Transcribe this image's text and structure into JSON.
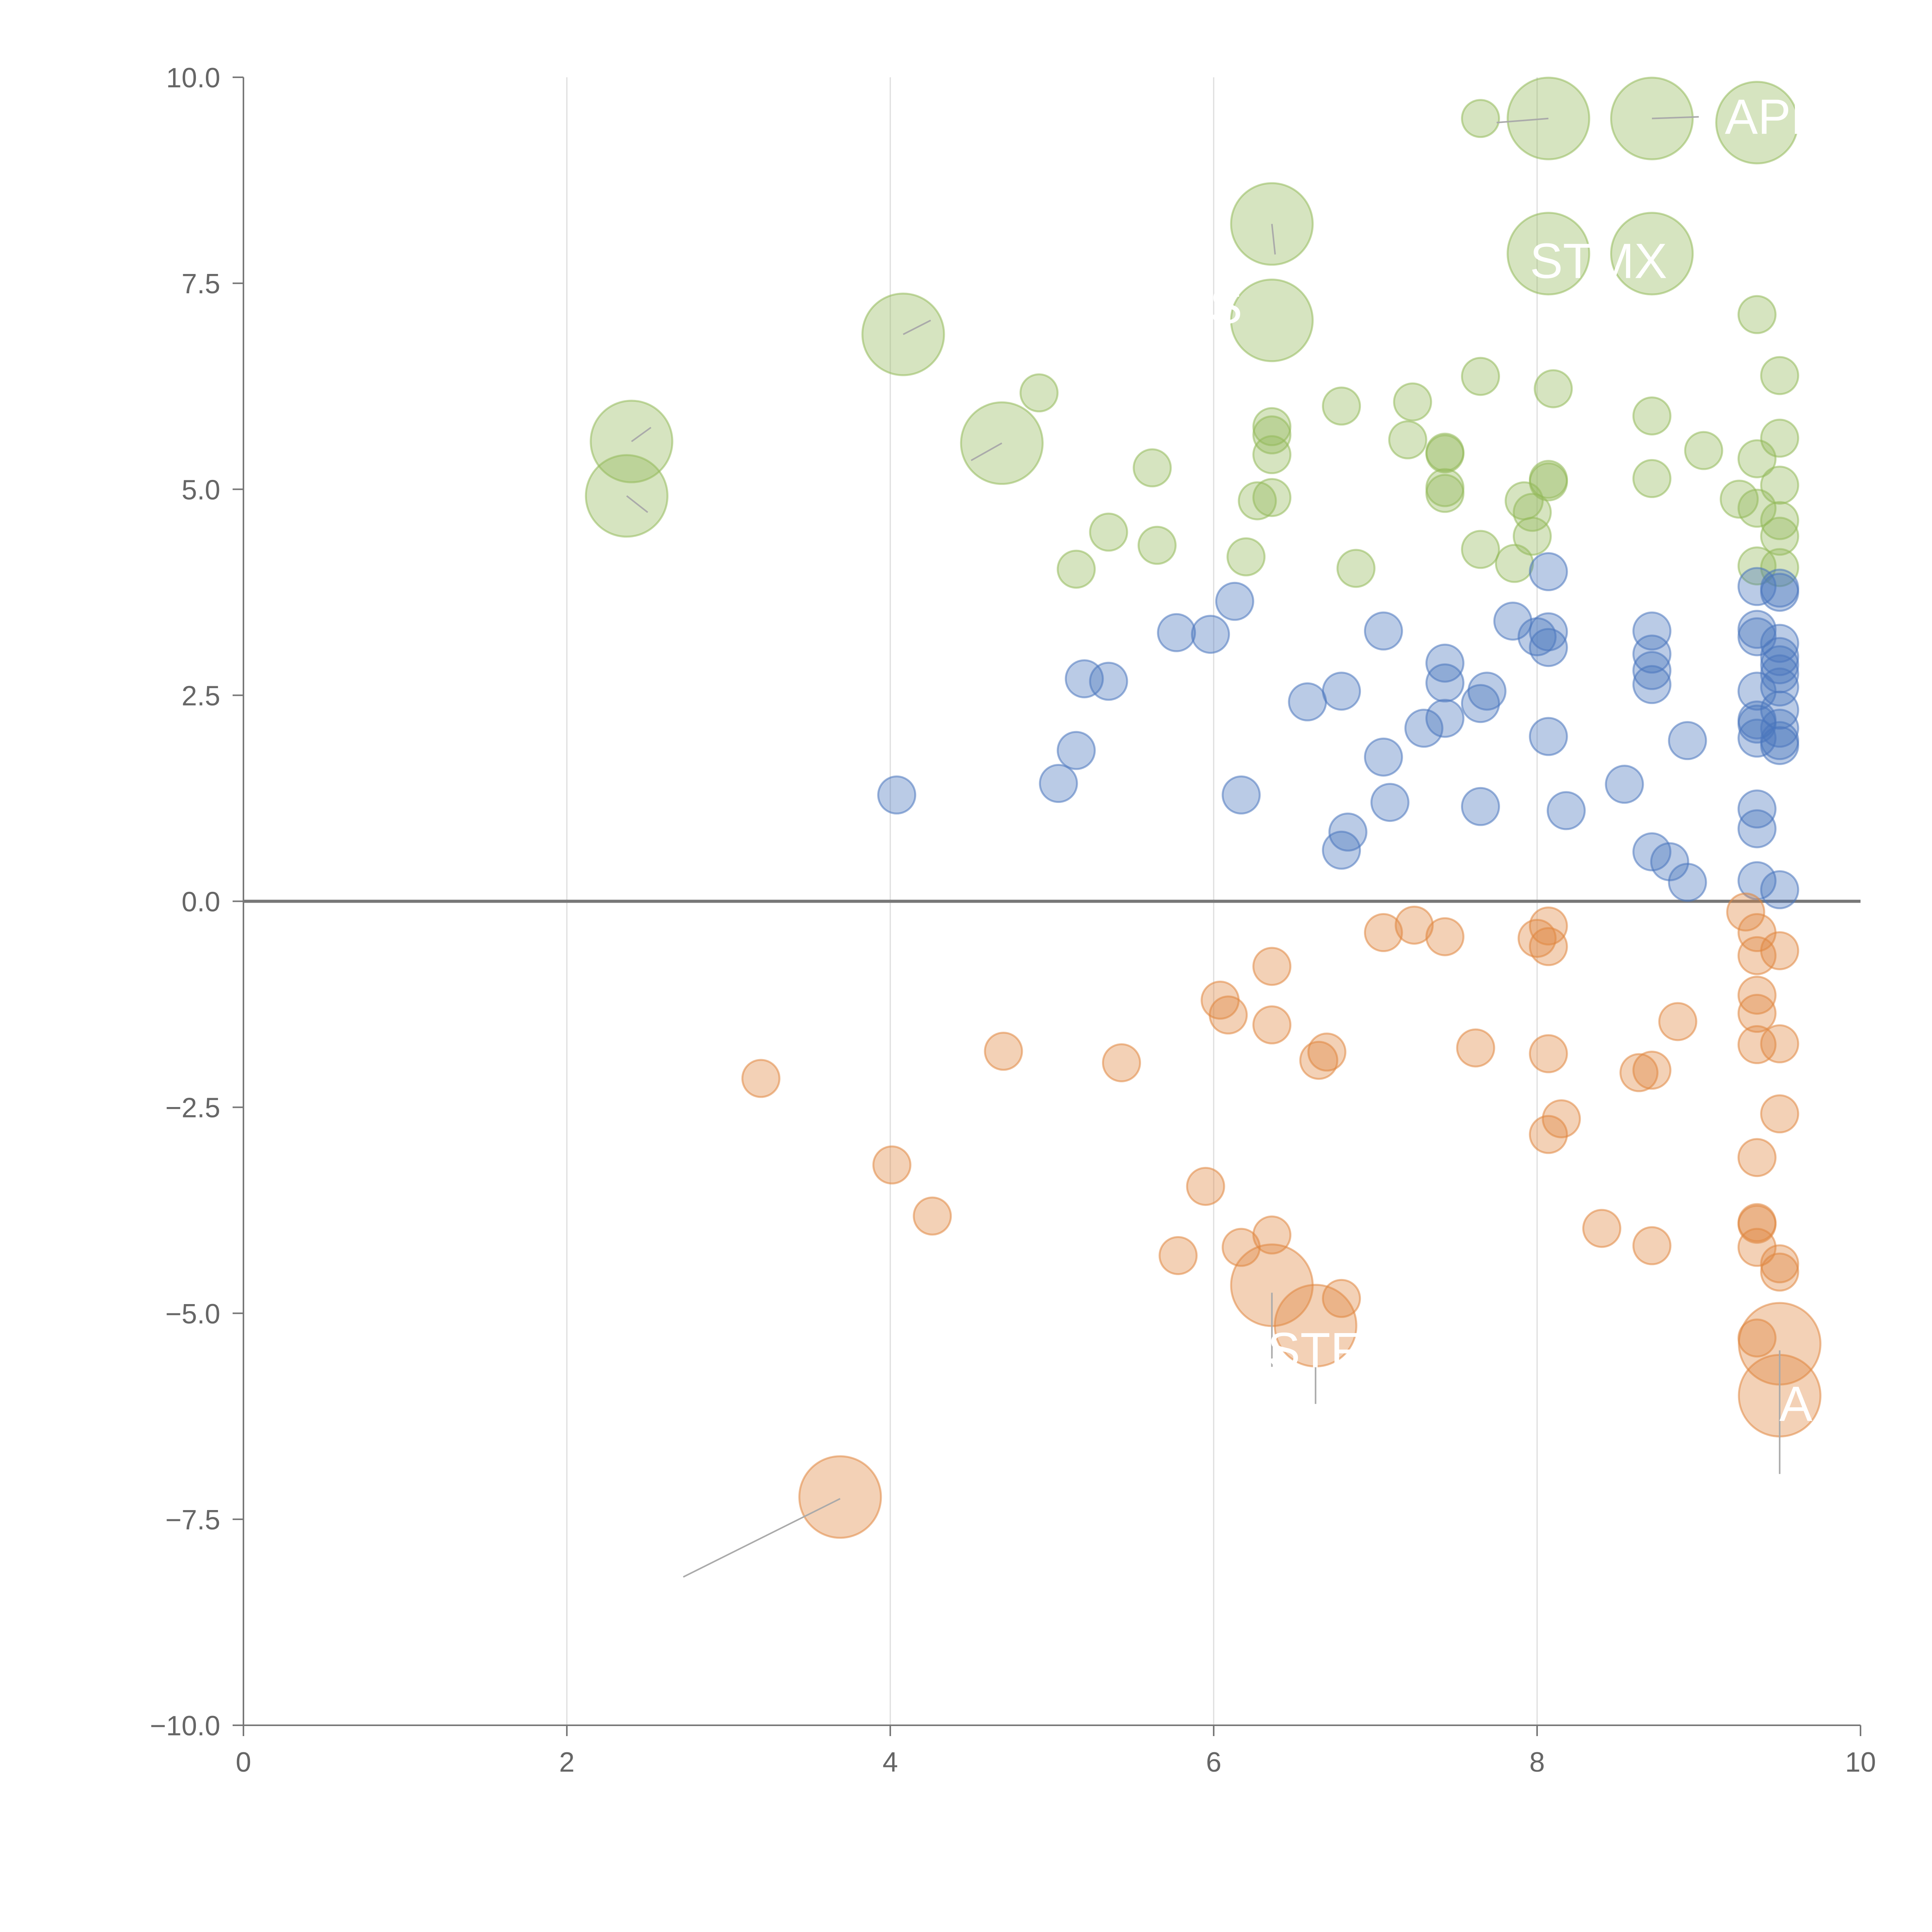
{
  "colors": {
    "positive_high": "#93b95a",
    "positive_mid": "#4a76bd",
    "negative": "#e0873f",
    "axis": "#777777",
    "grid": "#dddddd",
    "label": "#ffffff",
    "leader": "#aaaaaa"
  },
  "chart_data": {
    "type": "scatter",
    "title": "",
    "xlabel": "",
    "ylabel": "",
    "xlim": [
      0,
      10
    ],
    "ylim": [
      -10,
      10
    ],
    "x_ticks": [
      "0",
      "2",
      "4",
      "6",
      "8",
      "10"
    ],
    "y_ticks": [
      "10.0",
      "7.5",
      "5.0",
      "2.5",
      "0.0",
      "−2.5",
      "−5.0",
      "−7.5",
      "−10.0"
    ],
    "grid": "vertical",
    "series": [
      {
        "name": "green",
        "points": [
          {
            "x": 7.65,
            "y": 9.5,
            "s": 1
          },
          {
            "x": 8.07,
            "y": 9.5,
            "s": 2.2
          },
          {
            "x": 8.71,
            "y": 9.5,
            "s": 2.2
          },
          {
            "x": 9.36,
            "y": 9.45,
            "s": 2.2
          },
          {
            "x": 6.36,
            "y": 8.22,
            "s": 2.2
          },
          {
            "x": 8.07,
            "y": 7.86,
            "s": 2.2
          },
          {
            "x": 8.71,
            "y": 7.86,
            "s": 2.2
          },
          {
            "x": 9.36,
            "y": 7.12,
            "s": 1
          },
          {
            "x": 4.08,
            "y": 6.88,
            "s": 2.2
          },
          {
            "x": 6.36,
            "y": 7.05,
            "s": 2.2
          },
          {
            "x": 7.65,
            "y": 6.37,
            "s": 1
          },
          {
            "x": 8.1,
            "y": 6.22,
            "s": 1
          },
          {
            "x": 9.5,
            "y": 6.38,
            "s": 1
          },
          {
            "x": 4.92,
            "y": 6.17,
            "s": 1
          },
          {
            "x": 6.79,
            "y": 6.01,
            "s": 1
          },
          {
            "x": 7.23,
            "y": 6.06,
            "s": 1
          },
          {
            "x": 2.4,
            "y": 5.58,
            "s": 2.2
          },
          {
            "x": 4.69,
            "y": 5.56,
            "s": 2.2
          },
          {
            "x": 8.71,
            "y": 5.89,
            "s": 1
          },
          {
            "x": 9.5,
            "y": 5.62,
            "s": 1
          },
          {
            "x": 6.36,
            "y": 5.76,
            "s": 1
          },
          {
            "x": 6.36,
            "y": 5.66,
            "s": 1
          },
          {
            "x": 7.2,
            "y": 5.6,
            "s": 1
          },
          {
            "x": 7.43,
            "y": 5.45,
            "s": 1
          },
          {
            "x": 7.43,
            "y": 5.43,
            "s": 1
          },
          {
            "x": 9.03,
            "y": 5.47,
            "s": 1
          },
          {
            "x": 9.36,
            "y": 5.37,
            "s": 1
          },
          {
            "x": 6.36,
            "y": 5.42,
            "s": 1
          },
          {
            "x": 5.62,
            "y": 5.26,
            "s": 1
          },
          {
            "x": 8.07,
            "y": 5.12,
            "s": 1
          },
          {
            "x": 8.07,
            "y": 5.09,
            "s": 1
          },
          {
            "x": 8.71,
            "y": 5.13,
            "s": 1
          },
          {
            "x": 9.5,
            "y": 5.05,
            "s": 1
          },
          {
            "x": 7.43,
            "y": 5.02,
            "s": 1
          },
          {
            "x": 7.43,
            "y": 4.95,
            "s": 1
          },
          {
            "x": 2.37,
            "y": 4.92,
            "s": 2.2
          },
          {
            "x": 6.27,
            "y": 4.86,
            "s": 1
          },
          {
            "x": 6.36,
            "y": 4.9,
            "s": 1
          },
          {
            "x": 7.92,
            "y": 4.86,
            "s": 1
          },
          {
            "x": 9.25,
            "y": 4.88,
            "s": 1
          },
          {
            "x": 9.36,
            "y": 4.77,
            "s": 1
          },
          {
            "x": 7.97,
            "y": 4.72,
            "s": 1
          },
          {
            "x": 9.5,
            "y": 4.62,
            "s": 1
          },
          {
            "x": 5.35,
            "y": 4.48,
            "s": 1
          },
          {
            "x": 5.65,
            "y": 4.32,
            "s": 1
          },
          {
            "x": 7.97,
            "y": 4.43,
            "s": 1
          },
          {
            "x": 9.5,
            "y": 4.43,
            "s": 1
          },
          {
            "x": 7.65,
            "y": 4.27,
            "s": 1
          },
          {
            "x": 6.2,
            "y": 4.18,
            "s": 1
          },
          {
            "x": 7.86,
            "y": 4.1,
            "s": 1
          },
          {
            "x": 5.15,
            "y": 4.03,
            "s": 1
          },
          {
            "x": 6.88,
            "y": 4.04,
            "s": 1
          },
          {
            "x": 9.36,
            "y": 4.07,
            "s": 1
          },
          {
            "x": 9.5,
            "y": 4.05,
            "s": 1
          }
        ]
      },
      {
        "name": "blue",
        "points": [
          {
            "x": 8.07,
            "y": 4.0,
            "s": 1
          },
          {
            "x": 9.36,
            "y": 3.82,
            "s": 1
          },
          {
            "x": 9.5,
            "y": 3.8,
            "s": 1
          },
          {
            "x": 9.5,
            "y": 3.75,
            "s": 1
          },
          {
            "x": 6.13,
            "y": 3.64,
            "s": 1
          },
          {
            "x": 7.85,
            "y": 3.4,
            "s": 1
          },
          {
            "x": 5.77,
            "y": 3.26,
            "s": 1
          },
          {
            "x": 5.98,
            "y": 3.24,
            "s": 1
          },
          {
            "x": 7.05,
            "y": 3.28,
            "s": 1
          },
          {
            "x": 8.07,
            "y": 3.27,
            "s": 1
          },
          {
            "x": 8.0,
            "y": 3.21,
            "s": 1
          },
          {
            "x": 8.71,
            "y": 3.28,
            "s": 1
          },
          {
            "x": 9.36,
            "y": 3.3,
            "s": 1
          },
          {
            "x": 9.36,
            "y": 3.21,
            "s": 1
          },
          {
            "x": 9.5,
            "y": 3.13,
            "s": 1
          },
          {
            "x": 8.07,
            "y": 3.08,
            "s": 1
          },
          {
            "x": 8.71,
            "y": 3.0,
            "s": 1
          },
          {
            "x": 9.5,
            "y": 2.97,
            "s": 1
          },
          {
            "x": 7.43,
            "y": 2.89,
            "s": 1
          },
          {
            "x": 9.5,
            "y": 2.87,
            "s": 1
          },
          {
            "x": 8.71,
            "y": 2.8,
            "s": 1
          },
          {
            "x": 9.5,
            "y": 2.76,
            "s": 1
          },
          {
            "x": 5.2,
            "y": 2.7,
            "s": 1
          },
          {
            "x": 5.35,
            "y": 2.67,
            "s": 1
          },
          {
            "x": 7.43,
            "y": 2.65,
            "s": 1
          },
          {
            "x": 8.71,
            "y": 2.63,
            "s": 1
          },
          {
            "x": 9.5,
            "y": 2.6,
            "s": 1
          },
          {
            "x": 9.36,
            "y": 2.55,
            "s": 1
          },
          {
            "x": 6.79,
            "y": 2.55,
            "s": 1
          },
          {
            "x": 7.69,
            "y": 2.55,
            "s": 1
          },
          {
            "x": 6.58,
            "y": 2.42,
            "s": 1
          },
          {
            "x": 7.65,
            "y": 2.4,
            "s": 1
          },
          {
            "x": 9.5,
            "y": 2.32,
            "s": 1
          },
          {
            "x": 7.43,
            "y": 2.22,
            "s": 1
          },
          {
            "x": 9.36,
            "y": 2.2,
            "s": 1
          },
          {
            "x": 7.3,
            "y": 2.1,
            "s": 1
          },
          {
            "x": 9.36,
            "y": 2.15,
            "s": 1
          },
          {
            "x": 9.5,
            "y": 2.1,
            "s": 1
          },
          {
            "x": 8.07,
            "y": 2.0,
            "s": 1
          },
          {
            "x": 9.36,
            "y": 1.98,
            "s": 1
          },
          {
            "x": 8.93,
            "y": 1.95,
            "s": 1
          },
          {
            "x": 9.5,
            "y": 1.95,
            "s": 1
          },
          {
            "x": 9.5,
            "y": 1.89,
            "s": 1
          },
          {
            "x": 5.15,
            "y": 1.83,
            "s": 1
          },
          {
            "x": 7.05,
            "y": 1.75,
            "s": 1
          },
          {
            "x": 5.04,
            "y": 1.43,
            "s": 1
          },
          {
            "x": 8.54,
            "y": 1.42,
            "s": 1
          },
          {
            "x": 4.04,
            "y": 1.29,
            "s": 1
          },
          {
            "x": 6.17,
            "y": 1.29,
            "s": 1
          },
          {
            "x": 7.09,
            "y": 1.2,
            "s": 1
          },
          {
            "x": 7.65,
            "y": 1.15,
            "s": 1
          },
          {
            "x": 8.18,
            "y": 1.1,
            "s": 1
          },
          {
            "x": 9.36,
            "y": 1.12,
            "s": 1
          },
          {
            "x": 9.36,
            "y": 0.88,
            "s": 1
          },
          {
            "x": 6.83,
            "y": 0.84,
            "s": 1
          },
          {
            "x": 6.79,
            "y": 0.62,
            "s": 1
          },
          {
            "x": 8.71,
            "y": 0.6,
            "s": 1
          },
          {
            "x": 8.82,
            "y": 0.48,
            "s": 1
          },
          {
            "x": 8.93,
            "y": 0.23,
            "s": 1
          },
          {
            "x": 9.36,
            "y": 0.25,
            "s": 1
          },
          {
            "x": 9.5,
            "y": 0.14,
            "s": 1
          }
        ]
      },
      {
        "name": "orange",
        "points": [
          {
            "x": 9.29,
            "y": -0.13,
            "s": 1
          },
          {
            "x": 7.24,
            "y": -0.29,
            "s": 1
          },
          {
            "x": 8.07,
            "y": -0.3,
            "s": 1
          },
          {
            "x": 7.05,
            "y": -0.38,
            "s": 1
          },
          {
            "x": 9.36,
            "y": -0.38,
            "s": 1
          },
          {
            "x": 7.43,
            "y": -0.43,
            "s": 1
          },
          {
            "x": 8.0,
            "y": -0.45,
            "s": 1
          },
          {
            "x": 8.07,
            "y": -0.55,
            "s": 1
          },
          {
            "x": 9.5,
            "y": -0.6,
            "s": 1
          },
          {
            "x": 9.36,
            "y": -0.66,
            "s": 1
          },
          {
            "x": 6.36,
            "y": -0.79,
            "s": 1
          },
          {
            "x": 9.36,
            "y": -1.14,
            "s": 1
          },
          {
            "x": 6.04,
            "y": -1.2,
            "s": 1
          },
          {
            "x": 6.09,
            "y": -1.38,
            "s": 1
          },
          {
            "x": 9.36,
            "y": -1.36,
            "s": 1
          },
          {
            "x": 8.87,
            "y": -1.46,
            "s": 1
          },
          {
            "x": 6.36,
            "y": -1.5,
            "s": 1
          },
          {
            "x": 9.36,
            "y": -1.74,
            "s": 1
          },
          {
            "x": 9.5,
            "y": -1.73,
            "s": 1
          },
          {
            "x": 7.62,
            "y": -1.78,
            "s": 1
          },
          {
            "x": 4.7,
            "y": -1.82,
            "s": 1
          },
          {
            "x": 6.7,
            "y": -1.83,
            "s": 1
          },
          {
            "x": 8.07,
            "y": -1.85,
            "s": 1
          },
          {
            "x": 5.43,
            "y": -1.96,
            "s": 1
          },
          {
            "x": 6.65,
            "y": -1.93,
            "s": 1
          },
          {
            "x": 8.71,
            "y": -2.05,
            "s": 1
          },
          {
            "x": 8.63,
            "y": -2.08,
            "s": 1
          },
          {
            "x": 3.2,
            "y": -2.15,
            "s": 1
          },
          {
            "x": 9.5,
            "y": -2.58,
            "s": 1
          },
          {
            "x": 8.15,
            "y": -2.64,
            "s": 1
          },
          {
            "x": 8.07,
            "y": -2.83,
            "s": 1
          },
          {
            "x": 9.36,
            "y": -3.11,
            "s": 1
          },
          {
            "x": 4.01,
            "y": -3.2,
            "s": 1
          },
          {
            "x": 5.95,
            "y": -3.46,
            "s": 1
          },
          {
            "x": 4.26,
            "y": -3.82,
            "s": 1
          },
          {
            "x": 9.36,
            "y": -3.9,
            "s": 1
          },
          {
            "x": 9.36,
            "y": -3.92,
            "s": 1
          },
          {
            "x": 8.4,
            "y": -3.97,
            "s": 1
          },
          {
            "x": 6.36,
            "y": -4.05,
            "s": 1
          },
          {
            "x": 6.17,
            "y": -4.2,
            "s": 1
          },
          {
            "x": 8.71,
            "y": -4.18,
            "s": 1
          },
          {
            "x": 9.36,
            "y": -4.2,
            "s": 1
          },
          {
            "x": 5.78,
            "y": -4.3,
            "s": 1
          },
          {
            "x": 9.5,
            "y": -4.4,
            "s": 1
          },
          {
            "x": 9.5,
            "y": -4.5,
            "s": 1
          },
          {
            "x": 6.36,
            "y": -4.66,
            "s": 2.2
          },
          {
            "x": 6.79,
            "y": -4.82,
            "s": 1
          },
          {
            "x": 6.63,
            "y": -5.15,
            "s": 2.2
          },
          {
            "x": 9.36,
            "y": -5.3,
            "s": 1
          },
          {
            "x": 9.5,
            "y": -5.37,
            "s": 2.2
          },
          {
            "x": 9.5,
            "y": -6.0,
            "s": 2.2
          },
          {
            "x": 3.69,
            "y": -7.23,
            "s": 2.2
          }
        ]
      }
    ],
    "annotations": [
      {
        "text": "APL",
        "x": 9.45,
        "y": 9.52,
        "anchor": "middle"
      },
      {
        "text": "STMX",
        "x": 8.38,
        "y": 7.77,
        "anchor": "middle"
      },
      {
        "text": "LYS",
        "x": 5.9,
        "y": 7.22,
        "anchor": "middle"
      },
      {
        "text": "STF",
        "x": 6.62,
        "y": -5.45,
        "anchor": "middle"
      },
      {
        "text": "A",
        "x": 9.6,
        "y": -6.1,
        "anchor": "middle"
      }
    ],
    "leaders": [
      {
        "x1": 3.69,
        "y1": -7.25,
        "x2": 2.72,
        "y2": -8.2
      },
      {
        "x1": 6.36,
        "y1": -4.75,
        "x2": 6.36,
        "y2": -5.65
      },
      {
        "x1": 6.63,
        "y1": -5.25,
        "x2": 6.63,
        "y2": -6.1
      },
      {
        "x1": 9.5,
        "y1": -5.45,
        "x2": 9.5,
        "y2": -6.95
      },
      {
        "x1": 8.07,
        "y1": 9.5,
        "x2": 7.75,
        "y2": 9.45
      },
      {
        "x1": 8.71,
        "y1": 9.5,
        "x2": 9.0,
        "y2": 9.52
      },
      {
        "x1": 6.36,
        "y1": 8.22,
        "x2": 6.38,
        "y2": 7.85
      },
      {
        "x1": 4.08,
        "y1": 6.88,
        "x2": 4.25,
        "y2": 7.05
      },
      {
        "x1": 2.4,
        "y1": 5.58,
        "x2": 2.52,
        "y2": 5.75
      },
      {
        "x1": 2.37,
        "y1": 4.92,
        "x2": 2.5,
        "y2": 4.72
      },
      {
        "x1": 4.69,
        "y1": 5.56,
        "x2": 4.5,
        "y2": 5.35
      }
    ]
  }
}
